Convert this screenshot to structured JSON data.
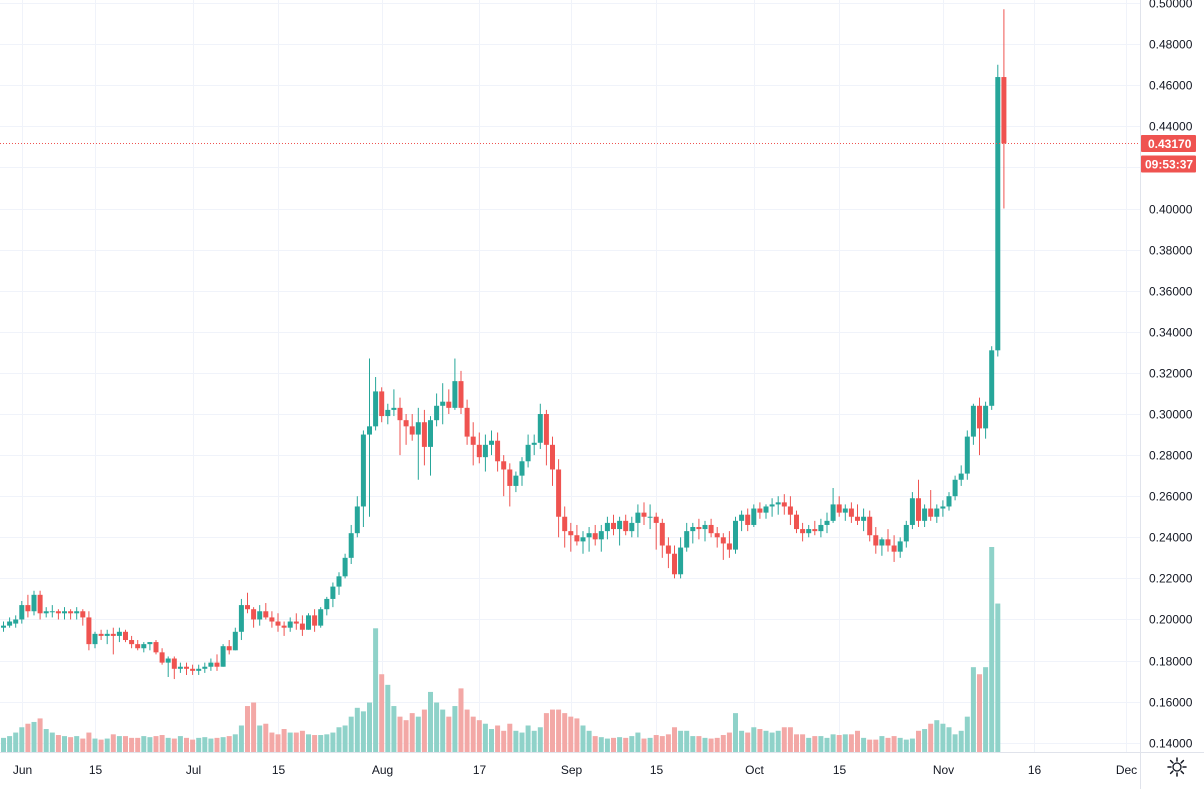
{
  "chart_data": {
    "type": "candlestick",
    "title": "",
    "xlabel": "",
    "ylabel": "",
    "grid": true,
    "ylim": [
      0.1355,
      0.5015
    ],
    "y_ticks": [
      "0.50000",
      "0.48000",
      "0.46000",
      "0.44000",
      "0.42000",
      "0.40000",
      "0.38000",
      "0.36000",
      "0.34000",
      "0.32000",
      "0.30000",
      "0.28000",
      "0.26000",
      "0.24000",
      "0.22000",
      "0.20000",
      "0.18000",
      "0.16000",
      "0.14000"
    ],
    "x_ticks": [
      {
        "label": "Jun",
        "day": 3
      },
      {
        "label": "15",
        "day": 15
      },
      {
        "label": "Jul",
        "day": 31
      },
      {
        "label": "15",
        "day": 45
      },
      {
        "label": "Aug",
        "day": 62
      },
      {
        "label": "17",
        "day": 78
      },
      {
        "label": "Sep",
        "day": 93
      },
      {
        "label": "15",
        "day": 107
      },
      {
        "label": "Oct",
        "day": 123
      },
      {
        "label": "15",
        "day": 137
      },
      {
        "label": "Nov",
        "day": 154
      },
      {
        "label": "16",
        "day": 169
      },
      {
        "label": "Dec",
        "day": 184
      }
    ],
    "current_price": "0.43170",
    "countdown": "09:53:37",
    "colors": {
      "up": "#26a69a",
      "down": "#ef5350",
      "vol_up": "#8fd2c9",
      "vol_down": "#f3a8a6",
      "grid": "#f0f3fa",
      "text": "#131722"
    },
    "candles": [
      [
        0.196,
        0.199,
        0.194,
        0.197
      ],
      [
        0.197,
        0.201,
        0.196,
        0.199
      ],
      [
        0.198,
        0.202,
        0.196,
        0.2
      ],
      [
        0.2,
        0.209,
        0.198,
        0.207
      ],
      [
        0.207,
        0.212,
        0.201,
        0.204
      ],
      [
        0.204,
        0.214,
        0.202,
        0.212
      ],
      [
        0.212,
        0.214,
        0.2,
        0.203
      ],
      [
        0.203,
        0.206,
        0.201,
        0.204
      ],
      [
        0.204,
        0.207,
        0.201,
        0.204
      ],
      [
        0.204,
        0.205,
        0.2,
        0.203
      ],
      [
        0.203,
        0.206,
        0.2,
        0.204
      ],
      [
        0.204,
        0.205,
        0.2,
        0.203
      ],
      [
        0.203,
        0.206,
        0.2,
        0.204
      ],
      [
        0.204,
        0.205,
        0.197,
        0.201
      ],
      [
        0.201,
        0.204,
        0.185,
        0.188
      ],
      [
        0.188,
        0.194,
        0.186,
        0.193
      ],
      [
        0.193,
        0.195,
        0.19,
        0.192
      ],
      [
        0.192,
        0.195,
        0.188,
        0.193
      ],
      [
        0.193,
        0.196,
        0.183,
        0.192
      ],
      [
        0.192,
        0.196,
        0.189,
        0.194
      ],
      [
        0.194,
        0.195,
        0.189,
        0.19
      ],
      [
        0.19,
        0.192,
        0.186,
        0.188
      ],
      [
        0.188,
        0.19,
        0.185,
        0.186
      ],
      [
        0.186,
        0.189,
        0.184,
        0.188
      ],
      [
        0.188,
        0.189,
        0.185,
        0.189
      ],
      [
        0.189,
        0.19,
        0.183,
        0.184
      ],
      [
        0.184,
        0.186,
        0.178,
        0.179
      ],
      [
        0.179,
        0.182,
        0.172,
        0.181
      ],
      [
        0.181,
        0.182,
        0.171,
        0.176
      ],
      [
        0.176,
        0.179,
        0.174,
        0.177
      ],
      [
        0.177,
        0.179,
        0.173,
        0.176
      ],
      [
        0.176,
        0.178,
        0.173,
        0.175
      ],
      [
        0.175,
        0.178,
        0.173,
        0.176
      ],
      [
        0.176,
        0.179,
        0.174,
        0.177
      ],
      [
        0.177,
        0.181,
        0.175,
        0.179
      ],
      [
        0.179,
        0.183,
        0.175,
        0.177
      ],
      [
        0.177,
        0.188,
        0.177,
        0.187
      ],
      [
        0.187,
        0.19,
        0.183,
        0.185
      ],
      [
        0.185,
        0.196,
        0.185,
        0.194
      ],
      [
        0.194,
        0.21,
        0.19,
        0.207
      ],
      [
        0.207,
        0.213,
        0.203,
        0.205
      ],
      [
        0.205,
        0.206,
        0.196,
        0.2
      ],
      [
        0.2,
        0.207,
        0.197,
        0.204
      ],
      [
        0.204,
        0.208,
        0.2,
        0.201
      ],
      [
        0.201,
        0.204,
        0.196,
        0.199
      ],
      [
        0.199,
        0.203,
        0.194,
        0.197
      ],
      [
        0.197,
        0.199,
        0.192,
        0.196
      ],
      [
        0.196,
        0.201,
        0.194,
        0.199
      ],
      [
        0.199,
        0.203,
        0.195,
        0.198
      ],
      [
        0.198,
        0.202,
        0.192,
        0.195
      ],
      [
        0.195,
        0.203,
        0.195,
        0.202
      ],
      [
        0.202,
        0.205,
        0.194,
        0.197
      ],
      [
        0.197,
        0.206,
        0.196,
        0.205
      ],
      [
        0.205,
        0.211,
        0.202,
        0.21
      ],
      [
        0.21,
        0.218,
        0.206,
        0.216
      ],
      [
        0.216,
        0.223,
        0.212,
        0.221
      ],
      [
        0.221,
        0.232,
        0.22,
        0.23
      ],
      [
        0.23,
        0.246,
        0.227,
        0.242
      ],
      [
        0.242,
        0.26,
        0.24,
        0.255
      ],
      [
        0.255,
        0.292,
        0.245,
        0.29
      ],
      [
        0.29,
        0.327,
        0.25,
        0.294
      ],
      [
        0.294,
        0.318,
        0.292,
        0.311
      ],
      [
        0.311,
        0.313,
        0.296,
        0.299
      ],
      [
        0.299,
        0.305,
        0.295,
        0.302
      ],
      [
        0.302,
        0.312,
        0.299,
        0.303
      ],
      [
        0.303,
        0.308,
        0.28,
        0.297
      ],
      [
        0.297,
        0.3,
        0.285,
        0.294
      ],
      [
        0.294,
        0.3,
        0.287,
        0.29
      ],
      [
        0.29,
        0.303,
        0.268,
        0.296
      ],
      [
        0.296,
        0.302,
        0.275,
        0.284
      ],
      [
        0.284,
        0.299,
        0.27,
        0.297
      ],
      [
        0.297,
        0.31,
        0.294,
        0.304
      ],
      [
        0.304,
        0.315,
        0.295,
        0.306
      ],
      [
        0.306,
        0.312,
        0.3,
        0.303
      ],
      [
        0.303,
        0.327,
        0.302,
        0.316
      ],
      [
        0.316,
        0.321,
        0.3,
        0.303
      ],
      [
        0.303,
        0.307,
        0.285,
        0.289
      ],
      [
        0.289,
        0.296,
        0.275,
        0.285
      ],
      [
        0.285,
        0.291,
        0.276,
        0.279
      ],
      [
        0.279,
        0.29,
        0.272,
        0.285
      ],
      [
        0.285,
        0.292,
        0.28,
        0.287
      ],
      [
        0.287,
        0.291,
        0.272,
        0.277
      ],
      [
        0.277,
        0.28,
        0.26,
        0.273
      ],
      [
        0.273,
        0.276,
        0.255,
        0.265
      ],
      [
        0.265,
        0.272,
        0.262,
        0.27
      ],
      [
        0.27,
        0.279,
        0.265,
        0.277
      ],
      [
        0.277,
        0.29,
        0.274,
        0.285
      ],
      [
        0.285,
        0.29,
        0.28,
        0.286
      ],
      [
        0.286,
        0.305,
        0.283,
        0.3
      ],
      [
        0.3,
        0.302,
        0.275,
        0.285
      ],
      [
        0.285,
        0.289,
        0.265,
        0.273
      ],
      [
        0.273,
        0.278,
        0.24,
        0.25
      ],
      [
        0.25,
        0.255,
        0.235,
        0.243
      ],
      [
        0.243,
        0.247,
        0.233,
        0.241
      ],
      [
        0.241,
        0.246,
        0.236,
        0.238
      ],
      [
        0.238,
        0.243,
        0.232,
        0.24
      ],
      [
        0.24,
        0.245,
        0.233,
        0.242
      ],
      [
        0.242,
        0.246,
        0.236,
        0.239
      ],
      [
        0.239,
        0.246,
        0.233,
        0.243
      ],
      [
        0.243,
        0.25,
        0.239,
        0.247
      ],
      [
        0.247,
        0.251,
        0.241,
        0.244
      ],
      [
        0.244,
        0.25,
        0.236,
        0.248
      ],
      [
        0.248,
        0.251,
        0.241,
        0.243
      ],
      [
        0.243,
        0.25,
        0.24,
        0.247
      ],
      [
        0.247,
        0.256,
        0.24,
        0.252
      ],
      [
        0.252,
        0.257,
        0.246,
        0.25
      ],
      [
        0.25,
        0.256,
        0.244,
        0.25
      ],
      [
        0.25,
        0.252,
        0.234,
        0.247
      ],
      [
        0.247,
        0.249,
        0.23,
        0.236
      ],
      [
        0.236,
        0.24,
        0.225,
        0.232
      ],
      [
        0.232,
        0.236,
        0.22,
        0.222
      ],
      [
        0.222,
        0.24,
        0.22,
        0.235
      ],
      [
        0.235,
        0.247,
        0.233,
        0.243
      ],
      [
        0.243,
        0.247,
        0.237,
        0.245
      ],
      [
        0.245,
        0.249,
        0.239,
        0.244
      ],
      [
        0.244,
        0.248,
        0.238,
        0.246
      ],
      [
        0.246,
        0.249,
        0.24,
        0.242
      ],
      [
        0.242,
        0.245,
        0.235,
        0.24
      ],
      [
        0.24,
        0.242,
        0.229,
        0.237
      ],
      [
        0.237,
        0.243,
        0.23,
        0.234
      ],
      [
        0.234,
        0.25,
        0.232,
        0.248
      ],
      [
        0.248,
        0.253,
        0.243,
        0.251
      ],
      [
        0.251,
        0.254,
        0.243,
        0.246
      ],
      [
        0.246,
        0.256,
        0.245,
        0.254
      ],
      [
        0.254,
        0.257,
        0.249,
        0.252
      ],
      [
        0.252,
        0.256,
        0.249,
        0.255
      ],
      [
        0.255,
        0.259,
        0.25,
        0.256
      ],
      [
        0.256,
        0.26,
        0.251,
        0.257
      ],
      [
        0.257,
        0.261,
        0.251,
        0.255
      ],
      [
        0.255,
        0.26,
        0.246,
        0.251
      ],
      [
        0.251,
        0.253,
        0.242,
        0.244
      ],
      [
        0.244,
        0.247,
        0.238,
        0.242
      ],
      [
        0.242,
        0.246,
        0.24,
        0.244
      ],
      [
        0.244,
        0.248,
        0.241,
        0.243
      ],
      [
        0.243,
        0.249,
        0.24,
        0.246
      ],
      [
        0.246,
        0.252,
        0.242,
        0.248
      ],
      [
        0.248,
        0.264,
        0.247,
        0.256
      ],
      [
        0.256,
        0.26,
        0.25,
        0.252
      ],
      [
        0.252,
        0.256,
        0.248,
        0.254
      ],
      [
        0.254,
        0.257,
        0.247,
        0.25
      ],
      [
        0.25,
        0.256,
        0.246,
        0.248
      ],
      [
        0.248,
        0.254,
        0.243,
        0.25
      ],
      [
        0.25,
        0.253,
        0.238,
        0.241
      ],
      [
        0.241,
        0.245,
        0.232,
        0.236
      ],
      [
        0.236,
        0.24,
        0.231,
        0.239
      ],
      [
        0.239,
        0.244,
        0.233,
        0.236
      ],
      [
        0.236,
        0.241,
        0.228,
        0.233
      ],
      [
        0.233,
        0.24,
        0.23,
        0.238
      ],
      [
        0.238,
        0.248,
        0.235,
        0.246
      ],
      [
        0.246,
        0.262,
        0.244,
        0.259
      ],
      [
        0.259,
        0.268,
        0.245,
        0.248
      ],
      [
        0.248,
        0.256,
        0.245,
        0.254
      ],
      [
        0.254,
        0.263,
        0.248,
        0.25
      ],
      [
        0.25,
        0.256,
        0.247,
        0.254
      ],
      [
        0.254,
        0.258,
        0.25,
        0.255
      ],
      [
        0.255,
        0.262,
        0.253,
        0.26
      ],
      [
        0.26,
        0.27,
        0.258,
        0.268
      ],
      [
        0.268,
        0.275,
        0.265,
        0.271
      ],
      [
        0.271,
        0.292,
        0.268,
        0.289
      ],
      [
        0.289,
        0.305,
        0.285,
        0.304
      ],
      [
        0.304,
        0.308,
        0.28,
        0.293
      ],
      [
        0.293,
        0.306,
        0.288,
        0.304
      ],
      [
        0.304,
        0.333,
        0.302,
        0.331
      ],
      [
        0.331,
        0.47,
        0.328,
        0.464
      ],
      [
        0.464,
        0.497,
        0.4,
        0.4317
      ]
    ],
    "volumes": [
      4,
      4.5,
      5.5,
      7,
      8,
      8.5,
      9.5,
      6.5,
      5.5,
      4.8,
      4.5,
      4.2,
      4.5,
      3.8,
      5.5,
      3.8,
      3.5,
      3.8,
      5,
      4.5,
      4.5,
      4,
      4,
      4.5,
      4.2,
      4.5,
      4.8,
      4,
      3.8,
      4.5,
      4,
      3.5,
      4,
      4.2,
      3.8,
      4,
      4.2,
      4.5,
      5,
      7.5,
      13,
      14,
      7.5,
      8,
      5.5,
      5,
      6.5,
      5.5,
      5.5,
      6,
      5,
      4.8,
      4.8,
      5,
      5.5,
      7,
      7.5,
      10,
      12.5,
      11.5,
      14,
      35,
      22,
      19,
      13,
      10,
      9,
      11,
      10,
      12,
      17,
      14,
      12,
      10,
      13,
      18,
      12,
      10,
      9,
      8,
      6.5,
      7.5,
      6,
      8,
      6,
      5.5,
      7.5,
      6,
      7,
      11,
      12,
      12,
      11,
      10,
      9.5,
      7.5,
      6,
      4.5,
      4.2,
      3.8,
      4,
      4.2,
      4,
      4.5,
      5.5,
      3.8,
      4,
      4.8,
      4.5,
      5,
      7,
      6,
      6,
      4.5,
      4.5,
      4,
      3.8,
      4,
      4.8,
      5.5,
      11,
      6,
      5.5,
      7,
      6.5,
      6,
      5.5,
      6,
      7,
      7,
      5,
      5,
      4,
      4.5,
      4.5,
      4,
      5,
      4.8,
      5,
      5,
      6,
      4,
      3.5,
      3.5,
      4.5,
      4,
      4.5,
      4,
      3.5,
      3.8,
      6,
      6.5,
      8,
      9,
      8,
      7,
      5,
      6,
      10,
      24,
      22,
      24,
      58,
      42
    ]
  }
}
